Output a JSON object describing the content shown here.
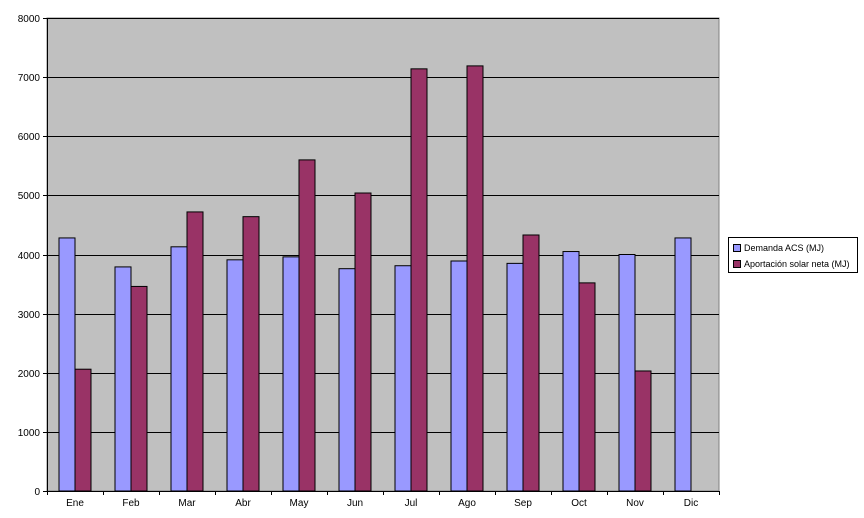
{
  "chart_data": {
    "type": "bar",
    "categories": [
      "Ene",
      "Feb",
      "Mar",
      "Abr",
      "May",
      "Jun",
      "Jul",
      "Ago",
      "Sep",
      "Oct",
      "Nov",
      "Dic"
    ],
    "series": [
      {
        "name": "Demanda ACS (MJ)",
        "color": "#9999ff",
        "values": [
          4280,
          3790,
          4130,
          3910,
          3960,
          3760,
          3810,
          3890,
          3850,
          4050,
          4000,
          4280
        ]
      },
      {
        "name": "Aportación solar neta (MJ)",
        "color": "#993366",
        "values": [
          2060,
          3460,
          4720,
          4640,
          5600,
          5040,
          7140,
          7190,
          4330,
          3520,
          2030,
          0
        ]
      }
    ],
    "ylim": [
      0,
      8000
    ],
    "yticks": [
      0,
      1000,
      2000,
      3000,
      4000,
      5000,
      6000,
      7000,
      8000
    ],
    "grid": true,
    "plot_background": "#c0c0c0",
    "legend_position": "right",
    "title": "",
    "xlabel": "",
    "ylabel": ""
  }
}
